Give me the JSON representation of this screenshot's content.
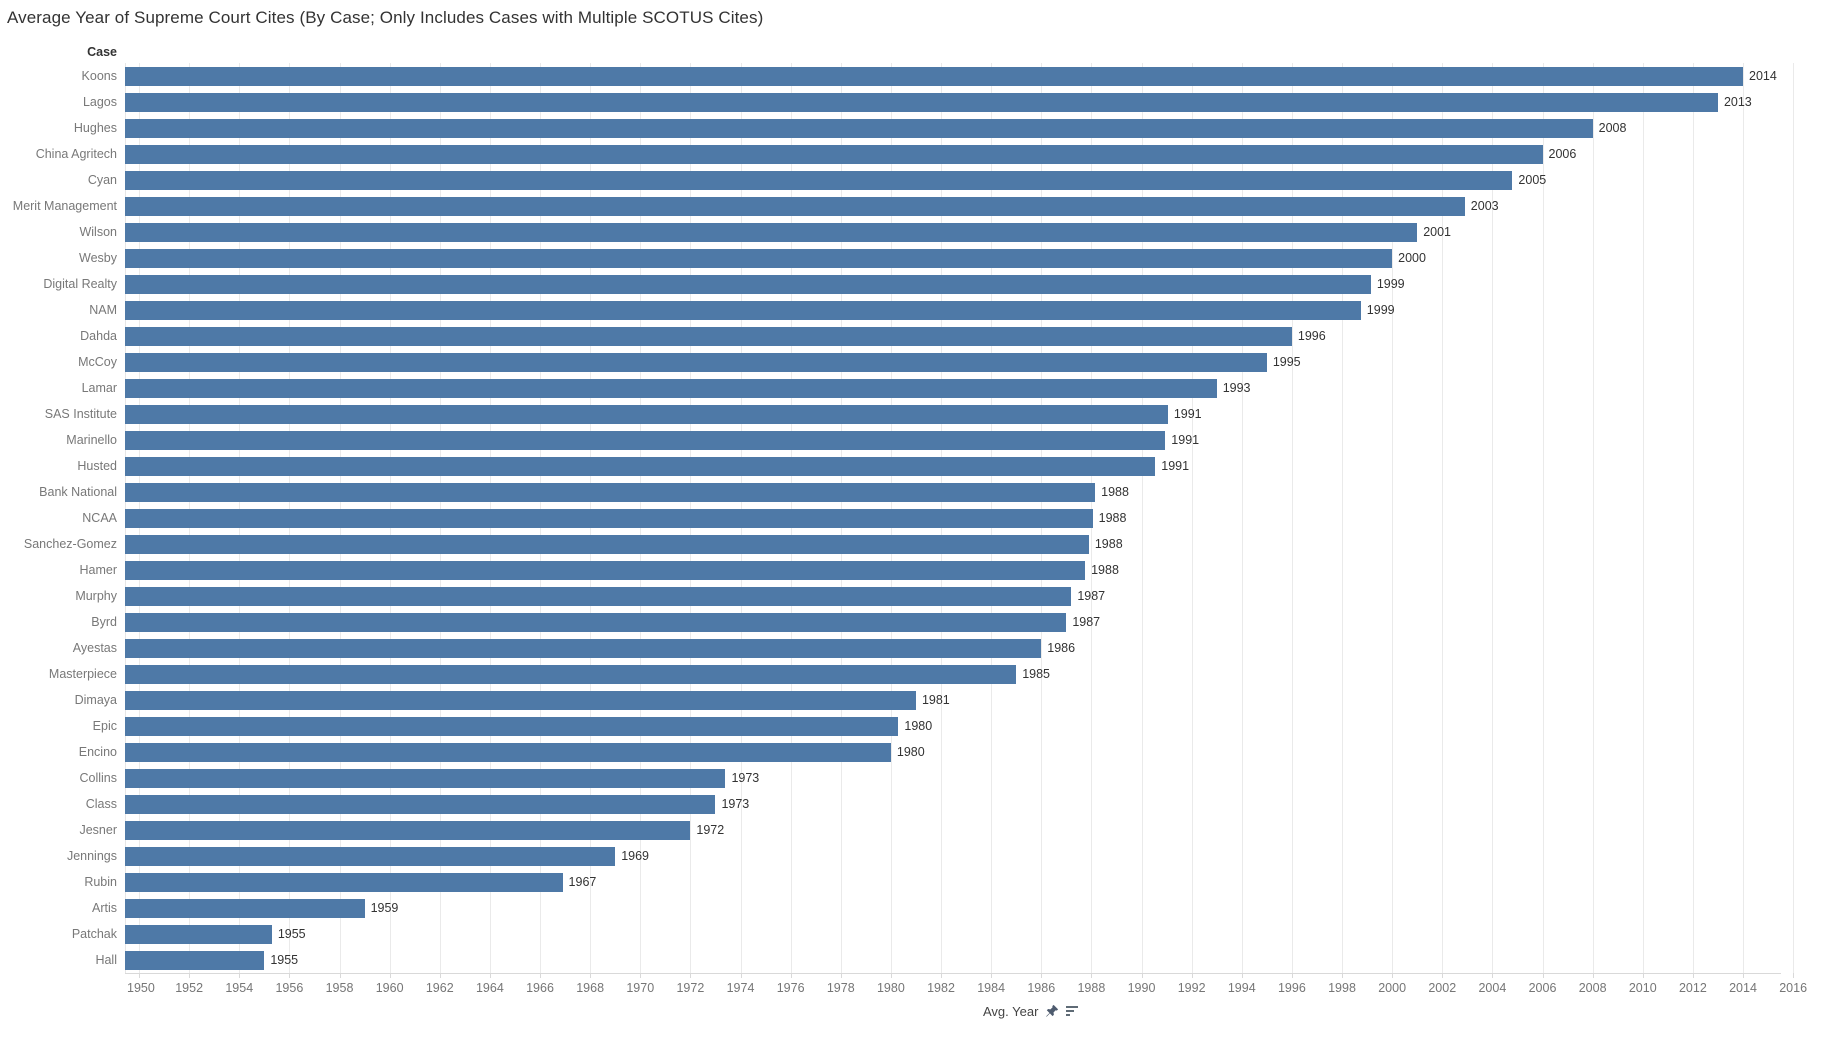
{
  "title": "Average Year of Supreme Court Cites (By Case; Only Includes Cases with Multiple SCOTUS Cites)",
  "column_header": "Case",
  "axis_caption": "Avg. Year",
  "icons": {
    "pin": "pin-icon",
    "sort": "sort-descending-icon"
  },
  "colors": {
    "bar": "#4e79a7",
    "gridline": "#eaeaea",
    "axis_line": "#d9d9d9",
    "row_label_text": "#787878",
    "tick_label_text": "#767676",
    "value_label_text": "#333333",
    "title_text": "#333333"
  },
  "chart_data": {
    "type": "bar",
    "orientation": "horizontal",
    "title": "Average Year of Supreme Court Cites (By Case; Only Includes Cases with Multiple SCOTUS Cites)",
    "category_axis_label": "Case",
    "value_axis_label": "Avg. Year",
    "x_domain": [
      1949.44,
      2015.9
    ],
    "x_ticks": [
      1950,
      1952,
      1954,
      1956,
      1958,
      1960,
      1962,
      1964,
      1966,
      1968,
      1970,
      1972,
      1974,
      1976,
      1978,
      1980,
      1982,
      1984,
      1986,
      1988,
      1990,
      1992,
      1994,
      1996,
      1998,
      2000,
      2002,
      2004,
      2006,
      2008,
      2010,
      2012,
      2014,
      2016
    ],
    "grid": true,
    "sorted": "descending",
    "rows": [
      {
        "case": "Koons",
        "value": 2014,
        "label": "2014"
      },
      {
        "case": "Lagos",
        "value": 2013,
        "label": "2013"
      },
      {
        "case": "Hughes",
        "value": 2008,
        "label": "2008"
      },
      {
        "case": "China Agritech",
        "value": 2006,
        "label": "2006"
      },
      {
        "case": "Cyan",
        "value": 2004.8,
        "label": "2005"
      },
      {
        "case": "Merit Management",
        "value": 2002.9,
        "label": "2003"
      },
      {
        "case": "Wilson",
        "value": 2001,
        "label": "2001"
      },
      {
        "case": "Wesby",
        "value": 2000,
        "label": "2000"
      },
      {
        "case": "Digital Realty",
        "value": 1999.15,
        "label": "1999"
      },
      {
        "case": "NAM",
        "value": 1998.75,
        "label": "1999"
      },
      {
        "case": "Dahda",
        "value": 1996,
        "label": "1996"
      },
      {
        "case": "McCoy",
        "value": 1995,
        "label": "1995"
      },
      {
        "case": "Lamar",
        "value": 1993,
        "label": "1993"
      },
      {
        "case": "SAS Institute",
        "value": 1991.05,
        "label": "1991"
      },
      {
        "case": "Marinello",
        "value": 1990.95,
        "label": "1991"
      },
      {
        "case": "Husted",
        "value": 1990.55,
        "label": "1991"
      },
      {
        "case": "Bank National",
        "value": 1988.15,
        "label": "1988"
      },
      {
        "case": "NCAA",
        "value": 1988.05,
        "label": "1988"
      },
      {
        "case": "Sanchez-Gomez",
        "value": 1987.9,
        "label": "1988"
      },
      {
        "case": "Hamer",
        "value": 1987.75,
        "label": "1988"
      },
      {
        "case": "Murphy",
        "value": 1987.2,
        "label": "1987"
      },
      {
        "case": "Byrd",
        "value": 1987,
        "label": "1987"
      },
      {
        "case": "Ayestas",
        "value": 1986,
        "label": "1986"
      },
      {
        "case": "Masterpiece",
        "value": 1985,
        "label": "1985"
      },
      {
        "case": "Dimaya",
        "value": 1981,
        "label": "1981"
      },
      {
        "case": "Epic",
        "value": 1980.3,
        "label": "1980"
      },
      {
        "case": "Encino",
        "value": 1980,
        "label": "1980"
      },
      {
        "case": "Collins",
        "value": 1973.4,
        "label": "1973"
      },
      {
        "case": "Class",
        "value": 1973,
        "label": "1973"
      },
      {
        "case": "Jesner",
        "value": 1972,
        "label": "1972"
      },
      {
        "case": "Jennings",
        "value": 1969,
        "label": "1969"
      },
      {
        "case": "Rubin",
        "value": 1966.9,
        "label": "1967"
      },
      {
        "case": "Artis",
        "value": 1959,
        "label": "1959"
      },
      {
        "case": "Patchak",
        "value": 1955.3,
        "label": "1955"
      },
      {
        "case": "Hall",
        "value": 1955,
        "label": "1955"
      }
    ]
  }
}
